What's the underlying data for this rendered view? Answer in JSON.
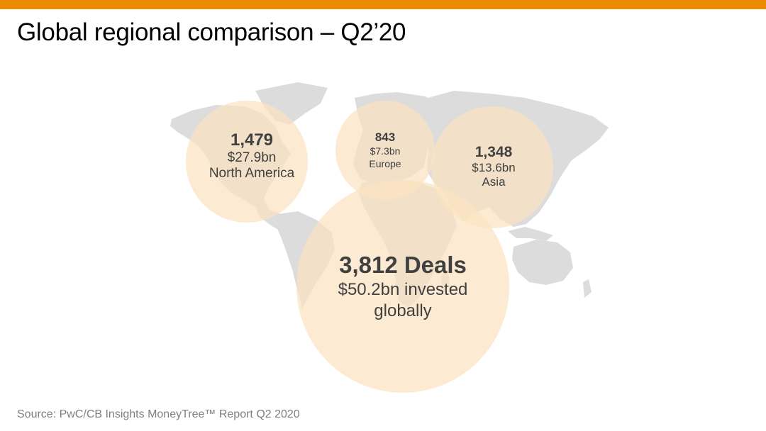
{
  "slide": {
    "title": "Global regional comparison – Q2’20",
    "source": "Source: PwC/CB Insights MoneyTree™ Report Q2 2020"
  },
  "colors": {
    "accent_bar": "#eb8c00",
    "bubble_fill": "#fbe3c0",
    "land": "#dcdcdc"
  },
  "regions": {
    "north_america": {
      "count": "1,479",
      "amount": "$27.9bn",
      "name": "North America"
    },
    "europe": {
      "count": "843",
      "amount": "$7.3bn",
      "name": "Europe"
    },
    "asia": {
      "count": "1,348",
      "amount": "$13.6bn",
      "name": "Asia"
    },
    "global": {
      "count": "3,812 Deals",
      "amount": "$50.2bn invested",
      "name": "globally"
    }
  }
}
